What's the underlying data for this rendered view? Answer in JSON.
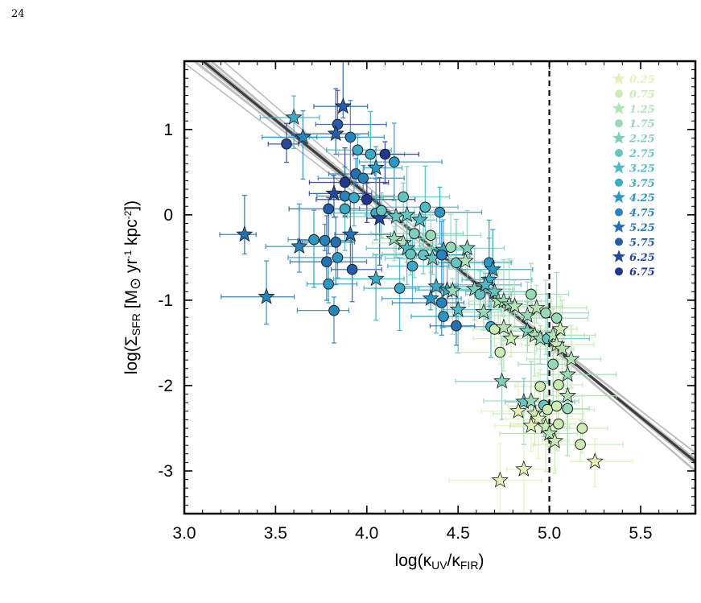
{
  "page": {
    "number": "24"
  },
  "chart_data": {
    "type": "scatter",
    "xlabel": "log(κUV/κFIR)",
    "ylabel": "log(ΣSFR [M⊙ yr-1 kpc-2])",
    "xlim": [
      3.0,
      5.8
    ],
    "ylim": [
      -3.5,
      1.8
    ],
    "x_ticks": [
      "3.0",
      "3.5",
      "4.0",
      "4.5",
      "5.0",
      "5.5"
    ],
    "y_ticks": [
      "1",
      "0",
      "-1",
      "-2",
      "-3"
    ],
    "vertical_reference_line": 5.0,
    "fit_line": {
      "slope": -1.74,
      "intercept": 7.2
    },
    "legend_position": "top-right",
    "legend": [
      {
        "label": "0.25",
        "marker": "star",
        "color": "#e1f3b8"
      },
      {
        "label": "0.75",
        "marker": "circle",
        "color": "#cbecb4"
      },
      {
        "label": "1.25",
        "marker": "star",
        "color": "#b2e2b5"
      },
      {
        "label": "1.75",
        "marker": "circle",
        "color": "#98d9b7"
      },
      {
        "label": "2.25",
        "marker": "star",
        "color": "#7ecfbb"
      },
      {
        "label": "2.75",
        "marker": "circle",
        "color": "#66c5c0"
      },
      {
        "label": "3.25",
        "marker": "star",
        "color": "#4fb9c5"
      },
      {
        "label": "3.75",
        "marker": "circle",
        "color": "#3aaac7"
      },
      {
        "label": "4.25",
        "marker": "star",
        "color": "#2b97c3"
      },
      {
        "label": "4.75",
        "marker": "circle",
        "color": "#2683bc"
      },
      {
        "label": "5.25",
        "marker": "star",
        "color": "#2370b4"
      },
      {
        "label": "5.75",
        "marker": "circle",
        "color": "#235ca8"
      },
      {
        "label": "6.25",
        "marker": "star",
        "color": "#24489c"
      },
      {
        "label": "6.75",
        "marker": "circle",
        "color": "#22358c"
      }
    ],
    "points": [
      {
        "x": 3.56,
        "y": 0.83,
        "m": "circle",
        "g": 12
      },
      {
        "x": 3.65,
        "y": 0.91,
        "m": "star",
        "g": 9
      },
      {
        "x": 3.6,
        "y": 1.14,
        "m": "star",
        "g": 7
      },
      {
        "x": 3.87,
        "y": 1.27,
        "m": "star",
        "g": 11
      },
      {
        "x": 3.84,
        "y": 1.06,
        "m": "circle",
        "g": 11
      },
      {
        "x": 3.83,
        "y": 0.95,
        "m": "star",
        "g": 11
      },
      {
        "x": 3.91,
        "y": 0.91,
        "m": "circle",
        "g": 9
      },
      {
        "x": 3.95,
        "y": 0.76,
        "m": "circle",
        "g": 7
      },
      {
        "x": 4.02,
        "y": 0.71,
        "m": "circle",
        "g": 7
      },
      {
        "x": 4.1,
        "y": 0.71,
        "m": "circle",
        "g": 13
      },
      {
        "x": 4.05,
        "y": 0.55,
        "m": "star",
        "g": 8
      },
      {
        "x": 4.15,
        "y": 0.62,
        "m": "circle",
        "g": 8
      },
      {
        "x": 3.88,
        "y": 0.38,
        "m": "circle",
        "g": 13
      },
      {
        "x": 3.94,
        "y": 0.48,
        "m": "circle",
        "g": 10
      },
      {
        "x": 3.98,
        "y": 0.43,
        "m": "circle",
        "g": 9
      },
      {
        "x": 3.82,
        "y": 0.25,
        "m": "star",
        "g": 12
      },
      {
        "x": 3.88,
        "y": 0.22,
        "m": "circle",
        "g": 9
      },
      {
        "x": 3.93,
        "y": 0.2,
        "m": "circle",
        "g": 7
      },
      {
        "x": 4.0,
        "y": 0.18,
        "m": "circle",
        "g": 13
      },
      {
        "x": 3.79,
        "y": 0.07,
        "m": "circle",
        "g": 11
      },
      {
        "x": 3.88,
        "y": 0.07,
        "m": "circle",
        "g": 7
      },
      {
        "x": 4.05,
        "y": 0.02,
        "m": "circle",
        "g": 7
      },
      {
        "x": 4.07,
        "y": -0.04,
        "m": "star",
        "g": 12
      },
      {
        "x": 4.08,
        "y": 0.05,
        "m": "circle",
        "g": 5
      },
      {
        "x": 4.16,
        "y": -0.02,
        "m": "star",
        "g": 5
      },
      {
        "x": 4.2,
        "y": 0.21,
        "m": "circle",
        "g": 5
      },
      {
        "x": 4.22,
        "y": 0.0,
        "m": "star",
        "g": 5
      },
      {
        "x": 4.29,
        "y": -0.06,
        "m": "star",
        "g": 6
      },
      {
        "x": 4.32,
        "y": 0.09,
        "m": "circle",
        "g": 6
      },
      {
        "x": 4.4,
        "y": 0.03,
        "m": "circle",
        "g": 8
      },
      {
        "x": 3.33,
        "y": -0.23,
        "m": "star",
        "g": 10
      },
      {
        "x": 3.63,
        "y": -0.37,
        "m": "star",
        "g": 9
      },
      {
        "x": 3.71,
        "y": -0.29,
        "m": "circle",
        "g": 8
      },
      {
        "x": 3.77,
        "y": -0.3,
        "m": "circle",
        "g": 9
      },
      {
        "x": 3.83,
        "y": -0.32,
        "m": "circle",
        "g": 10
      },
      {
        "x": 3.91,
        "y": -0.23,
        "m": "star",
        "g": 10
      },
      {
        "x": 3.78,
        "y": -0.55,
        "m": "circle",
        "g": 10
      },
      {
        "x": 3.84,
        "y": -0.5,
        "m": "circle",
        "g": 8
      },
      {
        "x": 3.92,
        "y": -0.64,
        "m": "circle",
        "g": 11
      },
      {
        "x": 3.79,
        "y": -0.81,
        "m": "circle",
        "g": 8
      },
      {
        "x": 4.05,
        "y": -0.75,
        "m": "star",
        "g": 7
      },
      {
        "x": 3.45,
        "y": -0.96,
        "m": "star",
        "g": 9
      },
      {
        "x": 3.82,
        "y": -1.12,
        "m": "circle",
        "g": 9
      },
      {
        "x": 4.15,
        "y": -0.28,
        "m": "star",
        "g": 3
      },
      {
        "x": 4.2,
        "y": -0.33,
        "m": "star",
        "g": 2
      },
      {
        "x": 4.26,
        "y": -0.22,
        "m": "circle",
        "g": 4
      },
      {
        "x": 4.22,
        "y": -0.39,
        "m": "star",
        "g": 6
      },
      {
        "x": 4.35,
        "y": -0.24,
        "m": "circle",
        "g": 3
      },
      {
        "x": 4.24,
        "y": -0.46,
        "m": "circle",
        "g": 5
      },
      {
        "x": 4.31,
        "y": -0.47,
        "m": "circle",
        "g": 5
      },
      {
        "x": 4.36,
        "y": -0.51,
        "m": "star",
        "g": 5
      },
      {
        "x": 4.42,
        "y": -0.41,
        "m": "star",
        "g": 7
      },
      {
        "x": 4.41,
        "y": -0.47,
        "m": "circle",
        "g": 9
      },
      {
        "x": 4.46,
        "y": -0.38,
        "m": "circle",
        "g": 3
      },
      {
        "x": 4.49,
        "y": -0.56,
        "m": "circle",
        "g": 5
      },
      {
        "x": 4.55,
        "y": -0.39,
        "m": "star",
        "g": 4
      },
      {
        "x": 4.54,
        "y": -0.54,
        "m": "star",
        "g": 2
      },
      {
        "x": 4.25,
        "y": -0.6,
        "m": "circle",
        "g": 7
      },
      {
        "x": 4.18,
        "y": -0.86,
        "m": "circle",
        "g": 7
      },
      {
        "x": 4.38,
        "y": -0.84,
        "m": "star",
        "g": 7
      },
      {
        "x": 4.44,
        "y": -0.88,
        "m": "star",
        "g": 7
      },
      {
        "x": 4.47,
        "y": -0.89,
        "m": "star",
        "g": 3
      },
      {
        "x": 4.35,
        "y": -0.98,
        "m": "star",
        "g": 8
      },
      {
        "x": 4.41,
        "y": -1.03,
        "m": "circle",
        "g": 9
      },
      {
        "x": 4.5,
        "y": -1.11,
        "m": "star",
        "g": 6
      },
      {
        "x": 4.59,
        "y": -0.87,
        "m": "star",
        "g": 4
      },
      {
        "x": 4.62,
        "y": -0.93,
        "m": "circle",
        "g": 5
      },
      {
        "x": 4.67,
        "y": -0.56,
        "m": "circle",
        "g": 8
      },
      {
        "x": 4.69,
        "y": -0.64,
        "m": "star",
        "g": 8
      },
      {
        "x": 4.67,
        "y": -0.76,
        "m": "star",
        "g": 7
      },
      {
        "x": 4.65,
        "y": -0.82,
        "m": "star",
        "g": 6
      },
      {
        "x": 4.7,
        "y": -0.9,
        "m": "star",
        "g": 5
      },
      {
        "x": 4.72,
        "y": -1.01,
        "m": "star",
        "g": 2
      },
      {
        "x": 4.75,
        "y": -1.01,
        "m": "star",
        "g": 3
      },
      {
        "x": 4.78,
        "y": -1.05,
        "m": "star",
        "g": 3
      },
      {
        "x": 4.81,
        "y": -1.07,
        "m": "star",
        "g": 2
      },
      {
        "x": 4.9,
        "y": -0.93,
        "m": "circle",
        "g": 3
      },
      {
        "x": 4.64,
        "y": -1.14,
        "m": "star",
        "g": 3
      },
      {
        "x": 4.68,
        "y": -1.31,
        "m": "circle",
        "g": 7
      },
      {
        "x": 4.7,
        "y": -1.34,
        "m": "circle",
        "g": 1
      },
      {
        "x": 4.75,
        "y": -1.32,
        "m": "star",
        "g": 2
      },
      {
        "x": 4.42,
        "y": -1.19,
        "m": "circle",
        "g": 8
      },
      {
        "x": 4.49,
        "y": -1.3,
        "m": "circle",
        "g": 10
      },
      {
        "x": 4.88,
        "y": -1.18,
        "m": "star",
        "g": 3
      },
      {
        "x": 4.93,
        "y": -1.09,
        "m": "star",
        "g": 2
      },
      {
        "x": 4.98,
        "y": -1.15,
        "m": "circle",
        "g": 3
      },
      {
        "x": 5.04,
        "y": -1.21,
        "m": "circle",
        "g": 3
      },
      {
        "x": 4.88,
        "y": -1.36,
        "m": "star",
        "g": 4
      },
      {
        "x": 4.92,
        "y": -1.41,
        "m": "star",
        "g": 2
      },
      {
        "x": 4.95,
        "y": -1.45,
        "m": "star",
        "g": 3
      },
      {
        "x": 4.99,
        "y": -1.45,
        "m": "circle",
        "g": 5
      },
      {
        "x": 5.02,
        "y": -1.41,
        "m": "star",
        "g": 2
      },
      {
        "x": 5.06,
        "y": -1.34,
        "m": "star",
        "g": 1
      },
      {
        "x": 5.04,
        "y": -1.52,
        "m": "star",
        "g": 1
      },
      {
        "x": 4.79,
        "y": -1.45,
        "m": "star",
        "g": 1
      },
      {
        "x": 4.73,
        "y": -1.61,
        "m": "circle",
        "g": 1
      },
      {
        "x": 5.07,
        "y": -1.57,
        "m": "star",
        "g": 2
      },
      {
        "x": 5.12,
        "y": -1.69,
        "m": "star",
        "g": 2
      },
      {
        "x": 5.1,
        "y": -1.87,
        "m": "star",
        "g": 3
      },
      {
        "x": 5.1,
        "y": -2.12,
        "m": "star",
        "g": 2
      },
      {
        "x": 5.02,
        "y": -1.75,
        "m": "circle",
        "g": 3
      },
      {
        "x": 5.05,
        "y": -1.99,
        "m": "circle",
        "g": 1
      },
      {
        "x": 4.95,
        "y": -2.01,
        "m": "circle",
        "g": 1
      },
      {
        "x": 4.74,
        "y": -1.95,
        "m": "star",
        "g": 4
      },
      {
        "x": 4.86,
        "y": -2.19,
        "m": "star",
        "g": 5
      },
      {
        "x": 4.9,
        "y": -2.18,
        "m": "star",
        "g": 3
      },
      {
        "x": 4.83,
        "y": -2.3,
        "m": "star",
        "g": 0
      },
      {
        "x": 4.92,
        "y": -2.33,
        "m": "star",
        "g": 1
      },
      {
        "x": 4.97,
        "y": -2.23,
        "m": "circle",
        "g": 5
      },
      {
        "x": 4.99,
        "y": -2.28,
        "m": "circle",
        "g": 1
      },
      {
        "x": 5.04,
        "y": -2.24,
        "m": "circle",
        "g": 1
      },
      {
        "x": 5.1,
        "y": -2.27,
        "m": "circle",
        "g": 3
      },
      {
        "x": 4.94,
        "y": -2.39,
        "m": "star",
        "g": 0
      },
      {
        "x": 4.9,
        "y": -2.47,
        "m": "star",
        "g": 0
      },
      {
        "x": 4.98,
        "y": -2.48,
        "m": "star",
        "g": 1
      },
      {
        "x": 5.0,
        "y": -2.56,
        "m": "star",
        "g": 2
      },
      {
        "x": 5.05,
        "y": -2.45,
        "m": "circle",
        "g": 1
      },
      {
        "x": 5.03,
        "y": -2.65,
        "m": "star",
        "g": 1
      },
      {
        "x": 5.18,
        "y": -2.5,
        "m": "circle",
        "g": 1
      },
      {
        "x": 5.17,
        "y": -2.69,
        "m": "circle",
        "g": 1
      },
      {
        "x": 5.25,
        "y": -2.89,
        "m": "star",
        "g": 0
      },
      {
        "x": 4.86,
        "y": -2.98,
        "m": "star",
        "g": 0
      },
      {
        "x": 4.73,
        "y": -3.11,
        "m": "star",
        "g": 0
      }
    ]
  }
}
